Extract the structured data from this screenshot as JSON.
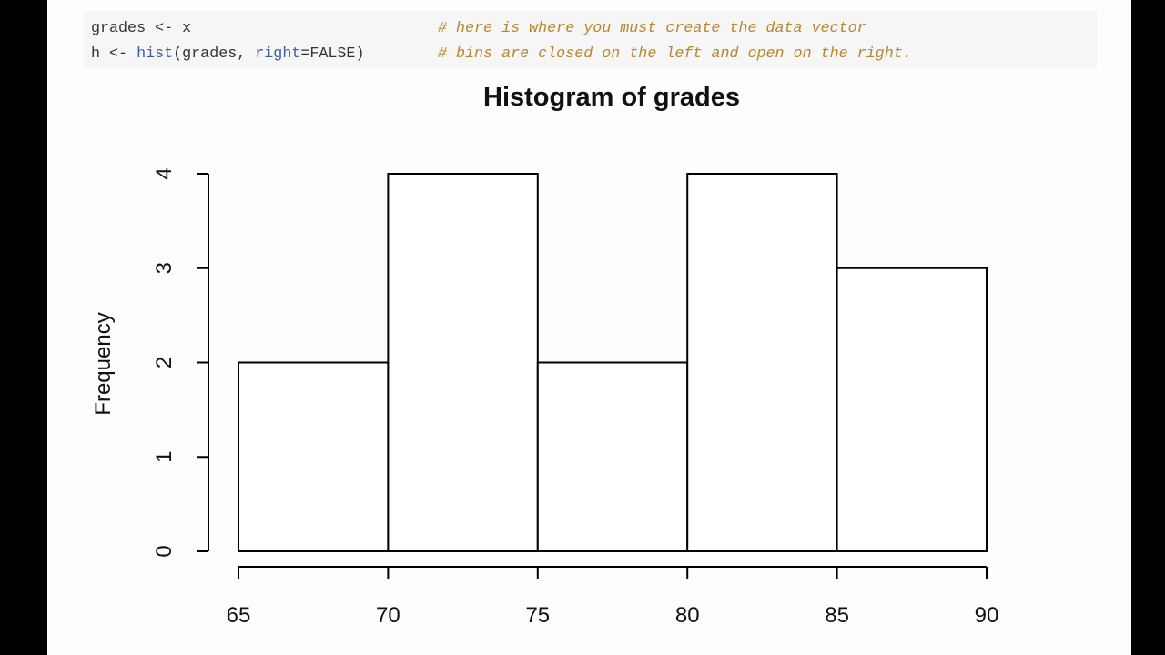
{
  "code": {
    "lines": [
      [
        "grades <- x",
        "# here is where you must create the data vector"
      ],
      [
        "h <- ",
        "hist",
        "(grades, ",
        "right",
        "=FALSE)",
        "# bins are closed on the left and open on the right."
      ]
    ]
  },
  "chart_data": {
    "type": "histogram",
    "title": "Histogram of grades",
    "y_label": "Frequency",
    "bins": [
      65,
      70,
      75,
      80,
      85,
      90
    ],
    "values": [
      2,
      4,
      2,
      4,
      3
    ],
    "color": "#ffffff",
    "xlim": [
      65,
      90
    ],
    "xticks": [
      65,
      70,
      75,
      80,
      85,
      90
    ],
    "ylim": [
      0,
      4
    ],
    "yticks": [
      0,
      1,
      2,
      3,
      4
    ]
  }
}
